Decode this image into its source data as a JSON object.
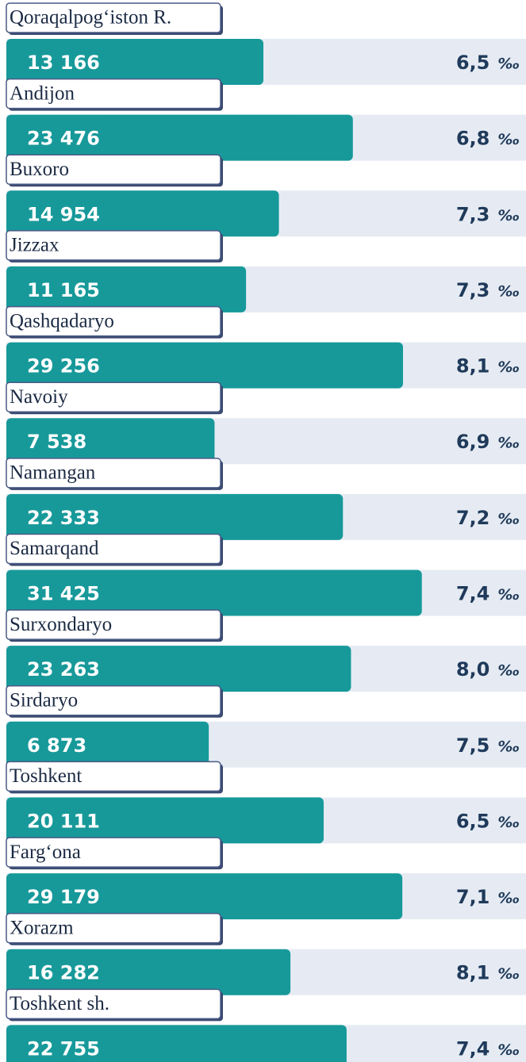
{
  "chart_data": {
    "type": "bar",
    "orientation": "horizontal",
    "categories": [
      "Qoraqalpog‘iston R.",
      "Andijon",
      "Buxoro",
      "Jizzax",
      "Qashqadaryo",
      "Navoiy",
      "Namangan",
      "Samarqand",
      "Surxondaryo",
      "Sirdaryo",
      "Toshkent",
      "Farg‘ona",
      "Xorazm",
      "Toshkent sh."
    ],
    "series": [
      {
        "color": "#17999a",
        "values": [
          13166,
          23476,
          14954,
          11165,
          29256,
          7538,
          22333,
          31425,
          23263,
          6873,
          20111,
          29179,
          16282,
          22755
        ],
        "value_labels": [
          "13 166",
          "23 476",
          "14 954",
          "11 165",
          "29 256",
          "7 538",
          "22 333",
          "31 425",
          "23 263",
          "6 873",
          "20 111",
          "29 179",
          "16 282",
          "22 755"
        ]
      },
      {
        "values": [
          6.5,
          6.8,
          7.3,
          7.3,
          8.1,
          6.9,
          7.2,
          7.4,
          8.0,
          7.5,
          6.5,
          7.1,
          8.1,
          7.4
        ],
        "value_labels": [
          "6,5",
          "6,8",
          "7,3",
          "7,3",
          "8,1",
          "6,9",
          "7,2",
          "7,4",
          "8,0",
          "7,5",
          "6,5",
          "7,1",
          "8,1",
          "7,4"
        ],
        "unit": "‰"
      }
    ],
    "xlim": [
      0,
      32000
    ]
  }
}
